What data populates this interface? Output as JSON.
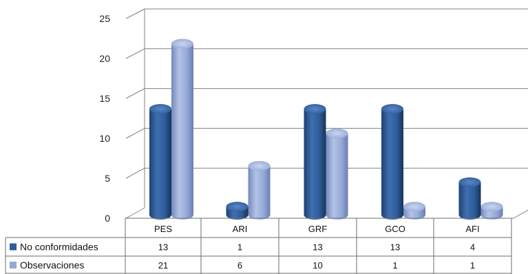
{
  "chart_data": {
    "type": "bar",
    "categories": [
      "PES",
      "ARI",
      "GRF",
      "GCO",
      "AFI"
    ],
    "series": [
      {
        "name": "No conformidades",
        "values": [
          13,
          1,
          13,
          13,
          4
        ],
        "color": "#2E5C9A"
      },
      {
        "name": "Observaciones",
        "values": [
          21,
          6,
          10,
          1,
          1
        ],
        "color": "#94A9D7"
      }
    ],
    "ylim": [
      0,
      25
    ],
    "yticks": [
      "0",
      "5",
      "10",
      "15",
      "20",
      "25"
    ],
    "grid": true,
    "style": "3d-cylinder",
    "data_table": true,
    "legend_placement": "data-table-left",
    "title": "",
    "xlabel": "",
    "ylabel": ""
  }
}
